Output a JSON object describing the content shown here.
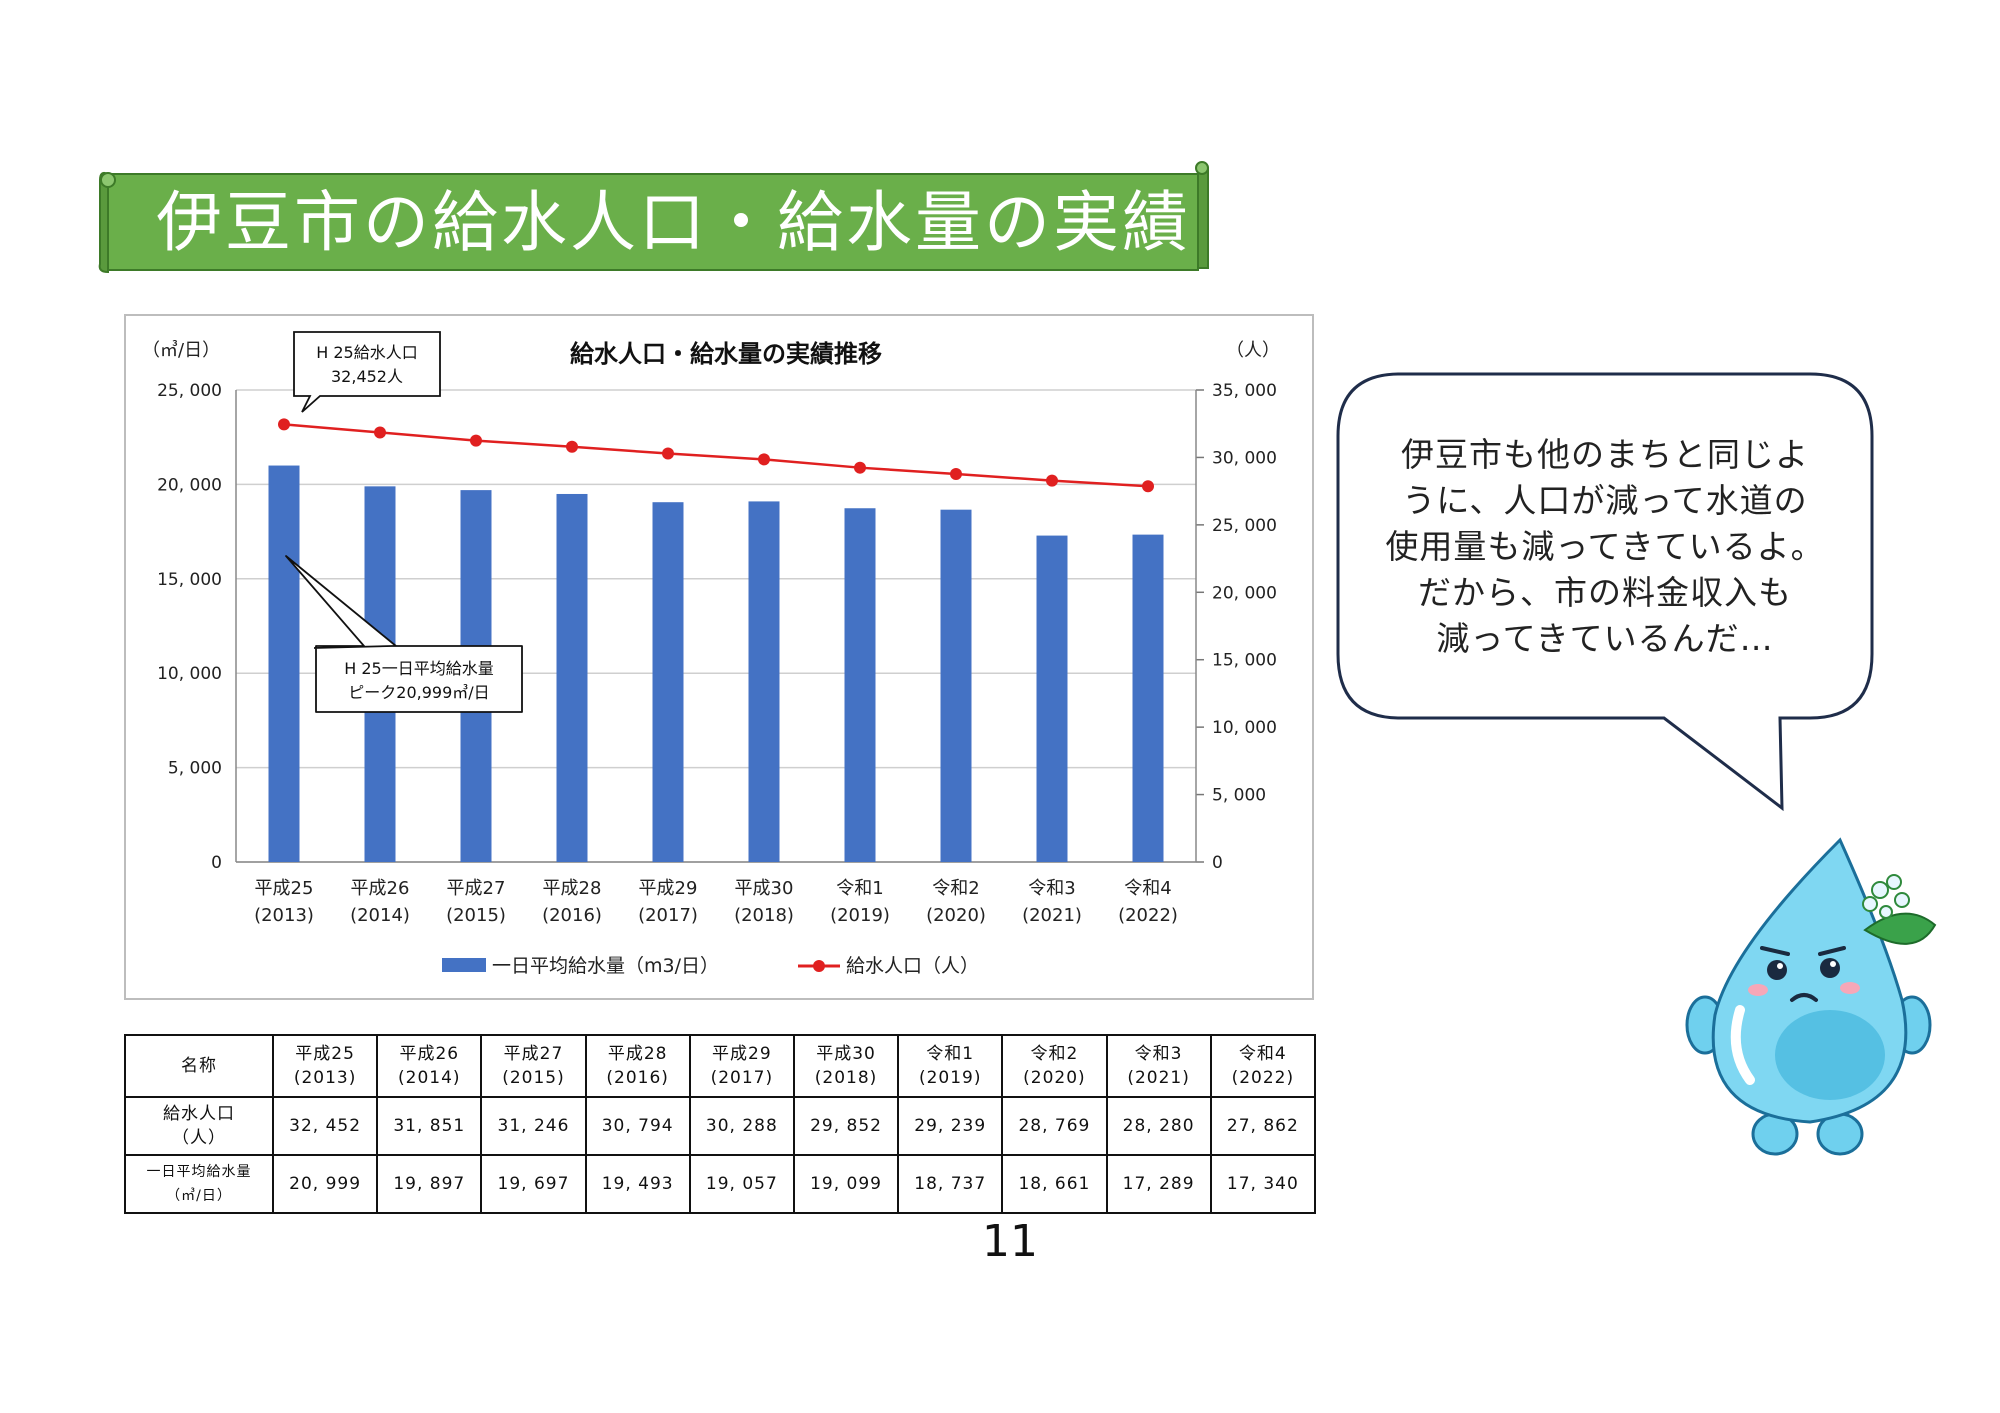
{
  "banner": {
    "title": "伊豆市の給水人口・給水量の実績"
  },
  "chart_data": {
    "type": "bar+line",
    "title": "給水人口・給水量の実績推移",
    "left_unit": "（㎥/日）",
    "right_unit": "（人）",
    "categories": [
      "平成25",
      "平成26",
      "平成27",
      "平成28",
      "平成29",
      "平成30",
      "令和1",
      "令和2",
      "令和3",
      "令和4"
    ],
    "category_years": [
      "(2013)",
      "(2014)",
      "(2015)",
      "(2016)",
      "(2017)",
      "(2018)",
      "(2019)",
      "(2020)",
      "(2021)",
      "(2022)"
    ],
    "left_axis": {
      "ylim": [
        0,
        25000
      ],
      "ticks": [
        "0",
        "5, 000",
        "10, 000",
        "15, 000",
        "20, 000",
        "25, 000"
      ]
    },
    "right_axis": {
      "ylim": [
        0,
        35000
      ],
      "ticks": [
        "0",
        "5, 000",
        "10, 000",
        "15, 000",
        "20, 000",
        "25, 000",
        "30, 000",
        "35, 000"
      ]
    },
    "series": [
      {
        "name": "一日平均給水量（m3/日）",
        "kind": "bar",
        "axis": "left",
        "color": "#4472C4",
        "values": [
          20999,
          19897,
          19697,
          19493,
          19057,
          19099,
          18737,
          18661,
          17289,
          17340
        ]
      },
      {
        "name": "給水人口（人）",
        "kind": "line",
        "axis": "right",
        "color": "#E02020",
        "values": [
          32452,
          31851,
          31246,
          30794,
          30288,
          29852,
          29239,
          28769,
          28280,
          27862
        ]
      }
    ],
    "annotations": [
      {
        "lines": [
          "H 25給水人口",
          "32,452人"
        ]
      },
      {
        "lines": [
          "H 25一日平均給水量",
          "ピーク20,999㎥/日"
        ]
      }
    ],
    "grid": true,
    "legend_position": "bottom"
  },
  "speech_bubble": {
    "lines": [
      "伊豆市も他のまちと同じよ",
      "うに、人口が減って水道の",
      "使用量も減ってきているよ。",
      "だから、市の料金収入も",
      "減ってきているんだ…"
    ]
  },
  "table": {
    "header_label": "名称",
    "columns": [
      {
        "era": "平成25",
        "year": "(2013)"
      },
      {
        "era": "平成26",
        "year": "(2014)"
      },
      {
        "era": "平成27",
        "year": "(2015)"
      },
      {
        "era": "平成28",
        "year": "(2016)"
      },
      {
        "era": "平成29",
        "year": "(2017)"
      },
      {
        "era": "平成30",
        "year": "(2018)"
      },
      {
        "era": "令和1",
        "year": "(2019)"
      },
      {
        "era": "令和2",
        "year": "(2020)"
      },
      {
        "era": "令和3",
        "year": "(2021)"
      },
      {
        "era": "令和4",
        "year": "(2022)"
      }
    ],
    "rows": [
      {
        "label_line1": "給水人口",
        "label_line2": "（人）",
        "values": [
          "32, 452",
          "31, 851",
          "31, 246",
          "30, 794",
          "30, 288",
          "29, 852",
          "29, 239",
          "28, 769",
          "28, 280",
          "27, 862"
        ]
      },
      {
        "label_line1": "一日平均給水量",
        "label_line2": "（㎥/日）",
        "values": [
          "20, 999",
          "19, 897",
          "19, 697",
          "19, 493",
          "19, 057",
          "19, 099",
          "18, 737",
          "18, 661",
          "17, 289",
          "17, 340"
        ]
      }
    ]
  },
  "page_number": "11",
  "colors": {
    "banner_green": "#6AAF4A",
    "bar_blue": "#4472C4",
    "line_red": "#E02020",
    "grid_gray": "#cfcfcf"
  }
}
